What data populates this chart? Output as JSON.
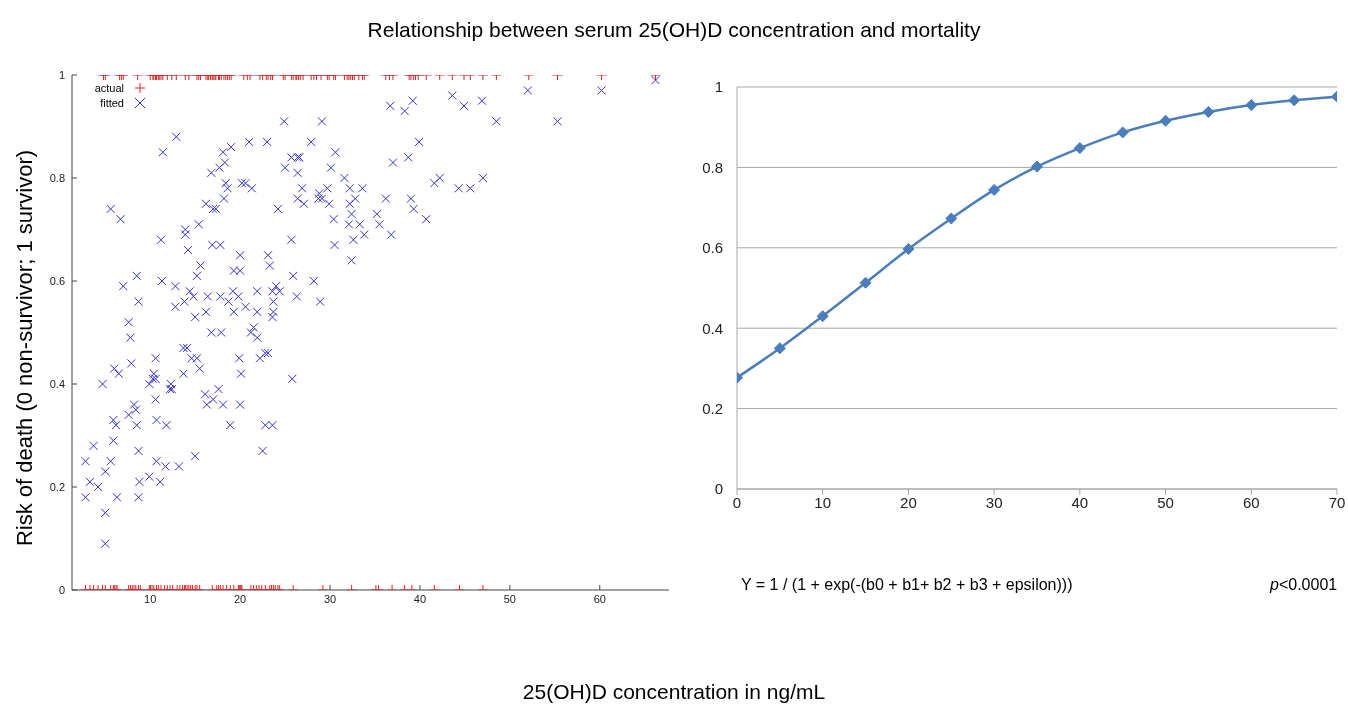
{
  "chart_data": [
    {
      "type": "scatter",
      "title": "Relationship between serum 25(OH)D concentration and mortality",
      "xlabel": "25(OH)D concentration in ng/mL",
      "ylabel": "Risk of death (0 non-survivor; 1 survivor)",
      "xlim": [
        1.3,
        67.7
      ],
      "xticks": [
        10,
        20,
        30,
        40,
        50,
        60
      ],
      "ylim": [
        0,
        1
      ],
      "yticks": [
        0,
        0.2,
        0.4,
        0.6,
        0.8,
        1
      ],
      "grid": false,
      "legend": "top left",
      "series": [
        {
          "name": "actual",
          "color": "#dd2222",
          "marker": "plus",
          "x": [
            4.8,
            5.0,
            6.6,
            6.8,
            7.0,
            8.6,
            10.0,
            10.3,
            10.4,
            10.6,
            10.7,
            10.9,
            11.0,
            11.2,
            11.4,
            11.9,
            12.4,
            12.9,
            13.9,
            14.3,
            15.2,
            15.4,
            15.6,
            16.2,
            16.4,
            16.5,
            16.7,
            16.9,
            17.0,
            17.2,
            17.3,
            17.6,
            17.7,
            17.9,
            18.2,
            18.4,
            18.6,
            18.8,
            19.0,
            20.4,
            20.8,
            21.1,
            22.2,
            22.5,
            22.9,
            23.1,
            23.4,
            23.6,
            24.8,
            25.0,
            25.7,
            25.9,
            26.2,
            26.3,
            26.5,
            26.7,
            27.0,
            27.9,
            28.2,
            28.5,
            29.0,
            29.7,
            29.9,
            30.4,
            30.6,
            31.6,
            31.9,
            32.1,
            32.3,
            32.5,
            32.7,
            33.2,
            33.6,
            33.8,
            36.2,
            36.6,
            37.0,
            38.8,
            39.0,
            39.3,
            39.5,
            39.8,
            40.7,
            42.2,
            43.6,
            44.9,
            45.6,
            47.0,
            48.5,
            52.1,
            55.3,
            60.2,
            66.2,
            2.8,
            3.3,
            3.7,
            4.2,
            4.7,
            5.0,
            5.6,
            5.9,
            6.0,
            6.2,
            6.3,
            7.6,
            7.8,
            8.0,
            8.2,
            8.4,
            8.7,
            8.9,
            9.9,
            10.2,
            10.4,
            10.7,
            10.9,
            11.2,
            11.6,
            11.9,
            12.2,
            12.5,
            13.0,
            13.3,
            13.6,
            13.8,
            13.9,
            14.1,
            14.3,
            14.5,
            14.7,
            15.0,
            15.2,
            15.5,
            16.9,
            17.4,
            17.6,
            17.8,
            18.1,
            18.5,
            18.9,
            19.3,
            19.8,
            19.9,
            20.1,
            20.2,
            21.2,
            21.5,
            21.8,
            22.1,
            22.4,
            22.8,
            23.3,
            23.5,
            23.7,
            23.9,
            24.2,
            24.4,
            25.9,
            29.2,
            32.4,
            35.1,
            35.4,
            36.9,
            38.3,
            39.1,
            41.6,
            44.4,
            47.0
          ],
          "values": [
            1,
            1,
            1,
            1,
            1,
            1,
            1,
            1,
            1,
            1,
            1,
            1,
            1,
            1,
            1,
            1,
            1,
            1,
            1,
            1,
            1,
            1,
            1,
            1,
            1,
            1,
            1,
            1,
            1,
            1,
            1,
            1,
            1,
            1,
            1,
            1,
            1,
            1,
            1,
            1,
            1,
            1,
            1,
            1,
            1,
            1,
            1,
            1,
            1,
            1,
            1,
            1,
            1,
            1,
            1,
            1,
            1,
            1,
            1,
            1,
            1,
            1,
            1,
            1,
            1,
            1,
            1,
            1,
            1,
            1,
            1,
            1,
            1,
            1,
            1,
            1,
            1,
            1,
            1,
            1,
            1,
            1,
            1,
            1,
            1,
            1,
            1,
            1,
            1,
            1,
            1,
            1,
            1,
            0,
            0,
            0,
            0,
            0,
            0,
            0,
            0,
            0,
            0,
            0,
            0,
            0,
            0,
            0,
            0,
            0,
            0,
            0,
            0,
            0,
            0,
            0,
            0,
            0,
            0,
            0,
            0,
            0,
            0,
            0,
            0,
            0,
            0,
            0,
            0,
            0,
            0,
            0,
            0,
            0,
            0,
            0,
            0,
            0,
            0,
            0,
            0,
            0,
            0,
            0,
            0,
            0,
            0,
            0,
            0,
            0,
            0,
            0,
            0,
            0,
            0,
            0,
            0,
            0,
            0,
            0,
            0,
            0,
            0,
            0,
            0,
            0,
            0,
            0
          ]
        },
        {
          "name": "fitted",
          "color": "#3333cc",
          "marker": "cross",
          "x": [
            5.6,
            6.7,
            11.4,
            12.9,
            11.2,
            13.9,
            13.9,
            14.2,
            15.4,
            16.2,
            17.0,
            17.3,
            18.2,
            16.8,
            17.7,
            18.3,
            18.1,
            19.0,
            18.4,
            18.6,
            20.2,
            20.6,
            21.3,
            21.0,
            23.0,
            24.9,
            29.1,
            27.9,
            30.6,
            30.1,
            25.0,
            25.7,
            26.4,
            26.6,
            26.4,
            24.2,
            26.9,
            26.4,
            27.1,
            28.8,
            29.7,
            29.1,
            29.9,
            28.7,
            30.4,
            30.5,
            16.9,
            17.8,
            20.0,
            25.7,
            20.0,
            15.2,
            15.6,
            23.1,
            23.3,
            25.9,
            28.2,
            19.3,
            7.0,
            8.5,
            11.3,
            12.8,
            8.7,
            12.8,
            13.8,
            14.4,
            14.8,
            16.4,
            17.8,
            19.2,
            19.8,
            18.7,
            20.6,
            21.9,
            23.6,
            23.7,
            24.0,
            24.4,
            26.3,
            28.9,
            21.9,
            23.6,
            23.7,
            16.2,
            15.0,
            19.3,
            7.6,
            16.8,
            17.9,
            21.2,
            21.5,
            33.6,
            31.6,
            32.2,
            32.8,
            32.2,
            32.4,
            32.1,
            33.3,
            32.6,
            33.8,
            32.4,
            35.2,
            35.5,
            36.2,
            36.8,
            39.0,
            39.3,
            40.7,
            41.6,
            42.2,
            44.3,
            45.6,
            47.0,
            36.7,
            38.3,
            39.2,
            43.6,
            44.9,
            46.9,
            48.5,
            52.0,
            55.3,
            60.2,
            66.2,
            37.0,
            38.7,
            39.9,
            7.8,
            7.9,
            4.7,
            6.0,
            6.5,
            5.9,
            6.2,
            5.9,
            5.6,
            5.0,
            3.7,
            2.8,
            3.3,
            4.2,
            2.8,
            6.3,
            5.0,
            5.0,
            7.6,
            8.2,
            8.4,
            8.5,
            8.7,
            8.8,
            8.7,
            9.9,
            10.7,
            11.1,
            11.7,
            10.7,
            11.8,
            10.6,
            9.9,
            10.3,
            10.4,
            10.6,
            10.6,
            12.3,
            12.4,
            12.2,
            13.2,
            13.7,
            14.1,
            13.7,
            14.6,
            15.2,
            15.5,
            15.0,
            16.1,
            16.3,
            17.0,
            17.6,
            18.1,
            18.9,
            20.0,
            20.1,
            19.9,
            22.2,
            22.5,
            22.8,
            23.6,
            22.8,
            23.1,
            25.8,
            21.9
          ],
          "values": [
            0.74,
            0.72,
            0.85,
            0.88,
            0.68,
            0.7,
            0.69,
            0.66,
            0.71,
            0.75,
            0.74,
            0.74,
            0.76,
            0.81,
            0.82,
            0.83,
            0.85,
            0.86,
            0.79,
            0.78,
            0.79,
            0.79,
            0.78,
            0.87,
            0.87,
            0.91,
            0.91,
            0.87,
            0.85,
            0.82,
            0.82,
            0.84,
            0.84,
            0.84,
            0.81,
            0.74,
            0.78,
            0.76,
            0.75,
            0.77,
            0.78,
            0.76,
            0.75,
            0.76,
            0.72,
            0.67,
            0.67,
            0.67,
            0.65,
            0.68,
            0.62,
            0.61,
            0.63,
            0.65,
            0.63,
            0.61,
            0.6,
            0.62,
            0.59,
            0.61,
            0.6,
            0.59,
            0.56,
            0.55,
            0.56,
            0.58,
            0.57,
            0.57,
            0.57,
            0.58,
            0.57,
            0.56,
            0.55,
            0.58,
            0.58,
            0.56,
            0.59,
            0.58,
            0.57,
            0.56,
            0.54,
            0.53,
            0.54,
            0.54,
            0.53,
            0.54,
            0.52,
            0.5,
            0.5,
            0.5,
            0.51,
            0.78,
            0.8,
            0.78,
            0.76,
            0.75,
            0.73,
            0.71,
            0.71,
            0.68,
            0.69,
            0.64,
            0.73,
            0.71,
            0.76,
            0.69,
            0.76,
            0.74,
            0.72,
            0.79,
            0.8,
            0.78,
            0.78,
            0.8,
            0.94,
            0.93,
            0.95,
            0.96,
            0.94,
            0.95,
            0.91,
            0.97,
            0.91,
            0.97,
            0.99,
            0.83,
            0.84,
            0.87,
            0.49,
            0.44,
            0.4,
            0.43,
            0.42,
            0.33,
            0.32,
            0.29,
            0.25,
            0.23,
            0.28,
            0.25,
            0.21,
            0.2,
            0.18,
            0.18,
            0.15,
            0.09,
            0.34,
            0.36,
            0.35,
            0.32,
            0.27,
            0.21,
            0.18,
            0.22,
            0.25,
            0.21,
            0.24,
            0.33,
            0.32,
            0.37,
            0.4,
            0.41,
            0.42,
            0.41,
            0.45,
            0.4,
            0.39,
            0.39,
            0.24,
            0.47,
            0.47,
            0.42,
            0.45,
            0.45,
            0.43,
            0.26,
            0.38,
            0.36,
            0.37,
            0.39,
            0.36,
            0.32,
            0.36,
            0.42,
            0.45,
            0.45,
            0.27,
            0.32,
            0.32,
            0.46,
            0.46,
            0.41,
            0.49
          ]
        }
      ]
    },
    {
      "type": "line",
      "x": [
        0,
        5,
        10,
        15,
        20,
        25,
        30,
        35,
        40,
        45,
        50,
        55,
        60,
        65,
        70
      ],
      "values": [
        0.277,
        0.35,
        0.43,
        0.513,
        0.597,
        0.673,
        0.744,
        0.802,
        0.848,
        0.887,
        0.916,
        0.938,
        0.955,
        0.967,
        0.976
      ],
      "color": "#4a7ebb",
      "marker": "diamond",
      "line_style": "solid",
      "xlim": [
        0,
        70
      ],
      "xticks": [
        0,
        10,
        20,
        30,
        40,
        50,
        60,
        70
      ],
      "ylim": [
        0,
        1
      ],
      "yticks": [
        0,
        0.2,
        0.4,
        0.6,
        0.8,
        1
      ],
      "grid": "y",
      "annotations": [
        "Y = 1 / (1 + exp(-(b0 + b1+ b2 + b3 + epsilon)))",
        "p<0.0001"
      ]
    }
  ]
}
